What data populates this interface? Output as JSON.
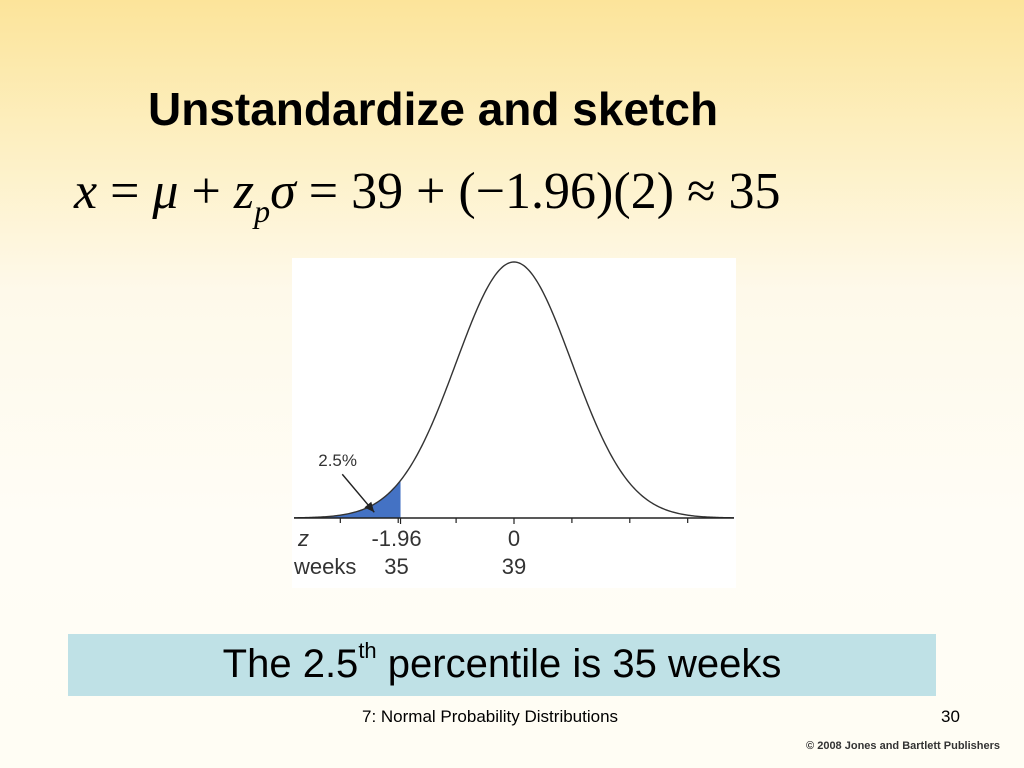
{
  "slide": {
    "title": "Unstandardize and sketch",
    "formula": {
      "x": "x",
      "eq1": " = ",
      "mu": "μ",
      "plus1": " + ",
      "z": "z",
      "p": "p",
      "sigma": "σ",
      "eq2": " = 39 + (−1.96)(2) ≈ 35"
    },
    "result": {
      "pre": "The 2.5",
      "sup": "th",
      "post": " percentile is 35 weeks"
    },
    "footer": "7: Normal Probability Distributions",
    "page_number": "30",
    "copyright": "© 2008 Jones and Bartlett Publishers"
  },
  "chart_data": {
    "type": "area",
    "distribution": "normal",
    "mean": 0,
    "sd": 1,
    "xlim": [
      -3.8,
      3.8
    ],
    "axis_rows": [
      {
        "label": "z",
        "ticks": [
          "-1.96",
          "0"
        ]
      },
      {
        "label": "weeks",
        "ticks": [
          "35",
          "39"
        ]
      }
    ],
    "tick_z_values": [
      -1.96,
      0
    ],
    "minor_tick_z_values": [
      -3,
      -2,
      -1,
      1,
      2,
      3
    ],
    "shaded_region": {
      "from": -3.8,
      "to": -1.96,
      "color": "#4472c4"
    },
    "annotation": "2.5%"
  }
}
